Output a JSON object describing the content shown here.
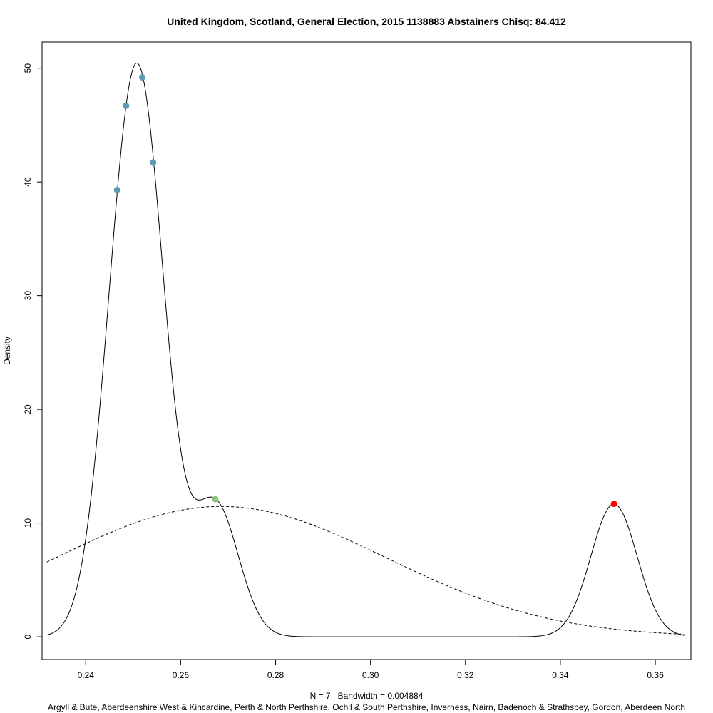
{
  "chart_data": {
    "type": "line",
    "title": "United Kingdom, Scotland, General Election, 2015 1138883 Abstainers Chisq: 84.412",
    "ylabel": "Density",
    "xlabel": "N = 7   Bandwidth = 0.004884",
    "sub": "Argyll & Bute, Aberdeenshire West & Kincardine, Perth & North Perthshire, Ochil & South Perthshire, Inverness, Nairn, Badenoch & Strathspey, Gordon, Aberdeen North",
    "xlim": [
      0.2308,
      0.3675
    ],
    "ylim": [
      -2.0,
      52.3
    ],
    "x_ticks": [
      0.24,
      0.26,
      0.28,
      0.3,
      0.32,
      0.34,
      0.36
    ],
    "x_tick_labels": [
      "0.24",
      "0.26",
      "0.28",
      "0.30",
      "0.32",
      "0.34",
      "0.36"
    ],
    "y_ticks": [
      0,
      10,
      20,
      30,
      40,
      50
    ],
    "y_tick_labels": [
      "0",
      "10",
      "20",
      "30",
      "40",
      "50"
    ],
    "kde": {
      "bandwidth": 0.004884,
      "observations": [
        0.2466,
        0.2485,
        0.2519,
        0.2542,
        0.2673,
        0.3513
      ],
      "weights": [
        1,
        1,
        2,
        1,
        1,
        1
      ],
      "x_range": [
        0.2318,
        0.3662
      ]
    },
    "normal_fit": {
      "mean": 0.2685,
      "sd": 0.0348,
      "style": "dashed"
    },
    "points": [
      {
        "x": 0.2466,
        "y": 39.3,
        "color": "#5b9bb3"
      },
      {
        "x": 0.2485,
        "y": 46.7,
        "color": "#5b9bb3"
      },
      {
        "x": 0.2519,
        "y": 49.2,
        "color": "#5b9bb3"
      },
      {
        "x": 0.2542,
        "y": 41.7,
        "color": "#5b9bb3"
      },
      {
        "x": 0.2673,
        "y": 12.1,
        "color": "#8fbf7f"
      },
      {
        "x": 0.3513,
        "y": 11.7,
        "color": "#ff0000"
      }
    ]
  }
}
